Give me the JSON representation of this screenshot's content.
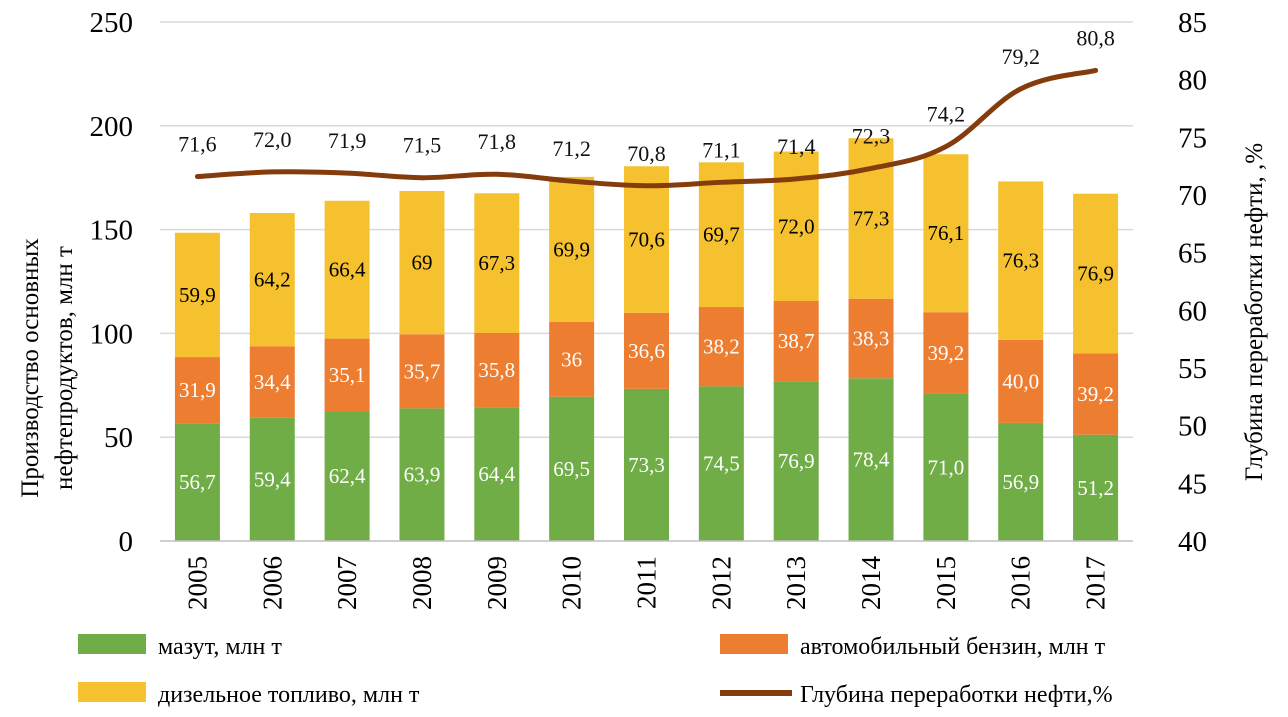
{
  "chart_data": {
    "type": "bar",
    "stacked": true,
    "categories": [
      "2005",
      "2006",
      "2007",
      "2008",
      "2009",
      "2010",
      "2011",
      "2012",
      "2013",
      "2014",
      "2015",
      "2016",
      "2017"
    ],
    "series": [
      {
        "name": "мазут, млн т",
        "color": "#70ad47",
        "values": [
          56.7,
          59.4,
          62.4,
          63.9,
          64.4,
          69.5,
          73.3,
          74.5,
          76.9,
          78.4,
          71.0,
          56.9,
          51.2
        ],
        "labels": [
          "56,7",
          "59,4",
          "62,4",
          "63,9",
          "64,4",
          "69,5",
          "73,3",
          "74,5",
          "76,9",
          "78,4",
          "71,0",
          "56,9",
          "51,2"
        ],
        "label_color": "#ffffff"
      },
      {
        "name": "автомобильный бензин, млн т",
        "color": "#ed7d31",
        "values": [
          31.9,
          34.4,
          35.1,
          35.7,
          35.8,
          36,
          36.6,
          38.2,
          38.7,
          38.3,
          39.2,
          40.0,
          39.2
        ],
        "labels": [
          "31,9",
          "34,4",
          "35,1",
          "35,7",
          "35,8",
          "36",
          "36,6",
          "38,2",
          "38,7",
          "38,3",
          "39,2",
          "40,0",
          "39,2"
        ],
        "label_color": "#ffffff"
      },
      {
        "name": "дизельное топливо, млн т",
        "color": "#f5c12f",
        "values": [
          59.9,
          64.2,
          66.4,
          69,
          67.3,
          69.9,
          70.6,
          69.7,
          72.0,
          77.3,
          76.1,
          76.3,
          76.9
        ],
        "labels": [
          "59,9",
          "64,2",
          "66,4",
          "69",
          "67,3",
          "69,9",
          "70,6",
          "69,7",
          "72,0",
          "77,3",
          "76,1",
          "76,3",
          "76,9"
        ],
        "label_color": "#000000"
      }
    ],
    "line_series": {
      "name": "Глубина переработки нефти,%",
      "color": "#843c0c",
      "axis": "right",
      "values": [
        71.6,
        72.0,
        71.9,
        71.5,
        71.8,
        71.2,
        70.8,
        71.1,
        71.4,
        72.3,
        74.2,
        79.2,
        80.8
      ],
      "labels": [
        "71,6",
        "72,0",
        "71,9",
        "71,5",
        "71,8",
        "71,2",
        "70,8",
        "71,1",
        "71,4",
        "72,3",
        "74,2",
        "79,2",
        "80,8"
      ]
    },
    "y_left": {
      "label": "Производство основных нефтепродуктов, млн т",
      "label_lines": [
        "Производство основных",
        "нефтепродуктов, млн т"
      ],
      "min": 0,
      "max": 250,
      "ticks": [
        "0",
        "50",
        "100",
        "150",
        "200",
        "250"
      ]
    },
    "y_right": {
      "label": "Глубина переработки нефти, ,%",
      "min": 40,
      "max": 85,
      "ticks": [
        "40",
        "45",
        "50",
        "55",
        "60",
        "65",
        "70",
        "75",
        "80",
        "85"
      ]
    },
    "grid": true,
    "legend_position": "bottom"
  }
}
